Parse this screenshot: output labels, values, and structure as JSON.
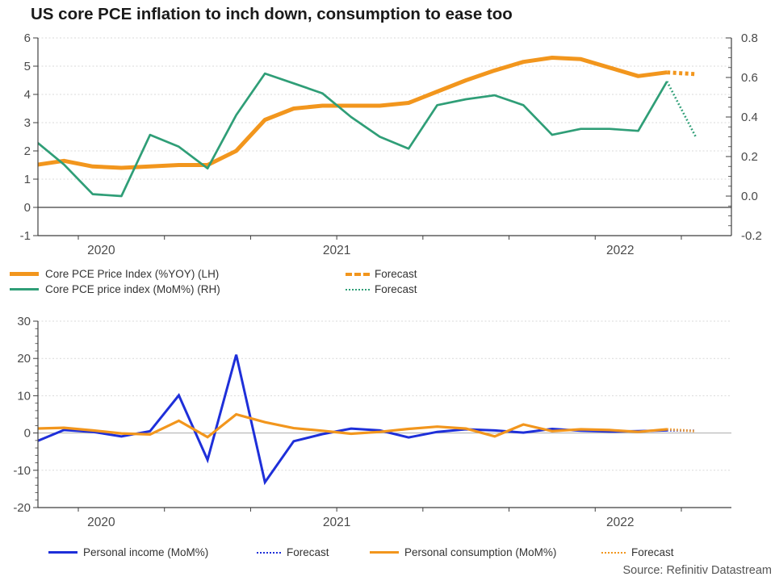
{
  "title": "US core PCE inflation to inch down, consumption to ease too",
  "source": "Source: Refinitiv Datastream",
  "colors": {
    "orange": "#F2961D",
    "green": "#2F9E77",
    "blue": "#1E2FD9",
    "grid": "#D9D9D9",
    "axis": "#3F3F3F",
    "tick_text": "#4A4A4A",
    "zero_top": "#3F3F3F",
    "zero_bottom": "#ABABAB"
  },
  "chart_data": [
    {
      "type": "line",
      "title": "US core PCE inflation to inch down, consumption to ease too",
      "x": [
        "Aug 2020",
        "Sep 2020",
        "Oct 2020",
        "Nov 2020",
        "Dec 2020",
        "Jan 2021",
        "Feb 2021",
        "Mar 2021",
        "Apr 2021",
        "May 2021",
        "Jun 2021",
        "Jul 2021",
        "Aug 2021",
        "Sep 2021",
        "Oct 2021",
        "Nov 2021",
        "Dec 2021",
        "Jan 2022",
        "Feb 2022",
        "Mar 2022",
        "Apr 2022",
        "May 2022",
        "Jun 2022"
      ],
      "forecast_x": "Jul 2022",
      "x_year_labels": [
        "2020",
        "2021",
        "2022"
      ],
      "x_tick_months": [
        2,
        5,
        8,
        11,
        14,
        17,
        20,
        23
      ],
      "left_axis": {
        "min": -1,
        "max": 6,
        "tick_step": 1,
        "labels": [
          "6",
          "5",
          "4",
          "3",
          "2",
          "1",
          "0",
          "-1"
        ]
      },
      "right_axis": {
        "min": -0.2,
        "max": 0.8,
        "tick_step": 0.2,
        "minor_step": 0.05,
        "labels": [
          "0.8",
          "0.6",
          "0.4",
          "0.2",
          "0.0",
          "-0.2"
        ]
      },
      "grid": true,
      "zero_line": true,
      "legend_position": "below",
      "series": [
        {
          "name": "Core PCE Price Index (%YOY) (LH)",
          "slug": "core-pce-yoy-line",
          "axis": "left",
          "color_key": "orange",
          "width": 5,
          "linejoin": "round",
          "values": [
            1.5,
            1.65,
            1.45,
            1.4,
            1.45,
            1.5,
            1.5,
            2.0,
            3.1,
            3.5,
            3.6,
            3.6,
            3.6,
            3.7,
            4.1,
            4.5,
            4.85,
            5.15,
            5.3,
            5.25,
            4.95,
            4.65,
            4.78
          ],
          "forecast_value": 4.72,
          "forecast_label": "Forecast",
          "forecast_dash": "4,3.5"
        },
        {
          "name": "Core PCE price index (MoM%) (RH)",
          "slug": "core-pce-mom-line",
          "axis": "right",
          "color_key": "green",
          "width": 2.7,
          "linejoin": "round",
          "values": [
            0.28,
            0.16,
            0.01,
            0.0,
            0.31,
            0.25,
            0.14,
            0.41,
            0.62,
            0.57,
            0.52,
            0.4,
            0.3,
            0.24,
            0.46,
            0.49,
            0.51,
            0.46,
            0.31,
            0.34,
            0.34,
            0.33,
            0.58
          ],
          "forecast_value": 0.3,
          "forecast_label": "Forecast",
          "forecast_dash": "1.8,2.6"
        }
      ]
    },
    {
      "type": "line",
      "x": [
        "Aug 2020",
        "Sep 2020",
        "Oct 2020",
        "Nov 2020",
        "Dec 2020",
        "Jan 2021",
        "Feb 2021",
        "Mar 2021",
        "Apr 2021",
        "May 2021",
        "Jun 2021",
        "Jul 2021",
        "Aug 2021",
        "Sep 2021",
        "Oct 2021",
        "Nov 2021",
        "Dec 2021",
        "Jan 2022",
        "Feb 2022",
        "Mar 2022",
        "Apr 2022",
        "May 2022",
        "Jun 2022"
      ],
      "forecast_x": "Jul 2022",
      "x_year_labels": [
        "2020",
        "2021",
        "2022"
      ],
      "x_tick_months": [
        2,
        5,
        8,
        11,
        14,
        17,
        20,
        23
      ],
      "left_axis": {
        "min": -20,
        "max": 30,
        "tick_step": 10,
        "minor_step": 2,
        "labels": [
          "30",
          "20",
          "10",
          "0",
          "-10",
          "-20"
        ]
      },
      "grid": true,
      "zero_line": true,
      "legend_position": "below",
      "series": [
        {
          "name": "Personal income (MoM%)",
          "slug": "personal-income-line",
          "axis": "left",
          "color_key": "blue",
          "width": 3,
          "linejoin": "miter",
          "values": [
            -2.4,
            0.8,
            0.3,
            -0.9,
            0.5,
            10.1,
            -7.2,
            21.0,
            -13.2,
            -2.2,
            -0.3,
            1.2,
            0.7,
            -1.2,
            0.3,
            1.0,
            0.7,
            0.1,
            1.1,
            0.6,
            0.4,
            0.5,
            0.7
          ],
          "forecast_value": 0.6,
          "forecast_label": "Forecast",
          "forecast_dash": "1.5,2.5"
        },
        {
          "name": "Personal consumption (MoM%)",
          "slug": "personal-consumption-line",
          "axis": "left",
          "color_key": "orange",
          "width": 3.2,
          "linejoin": "miter",
          "values": [
            1.2,
            1.4,
            0.7,
            -0.1,
            -0.4,
            3.3,
            -1.1,
            5.0,
            2.9,
            1.3,
            0.6,
            -0.2,
            0.3,
            1.1,
            1.7,
            1.2,
            -0.9,
            2.3,
            0.5,
            1.0,
            0.8,
            0.3,
            1.0
          ],
          "forecast_value": 0.5,
          "forecast_label": "Forecast",
          "forecast_dash": "1.5,2.5"
        }
      ]
    }
  ]
}
